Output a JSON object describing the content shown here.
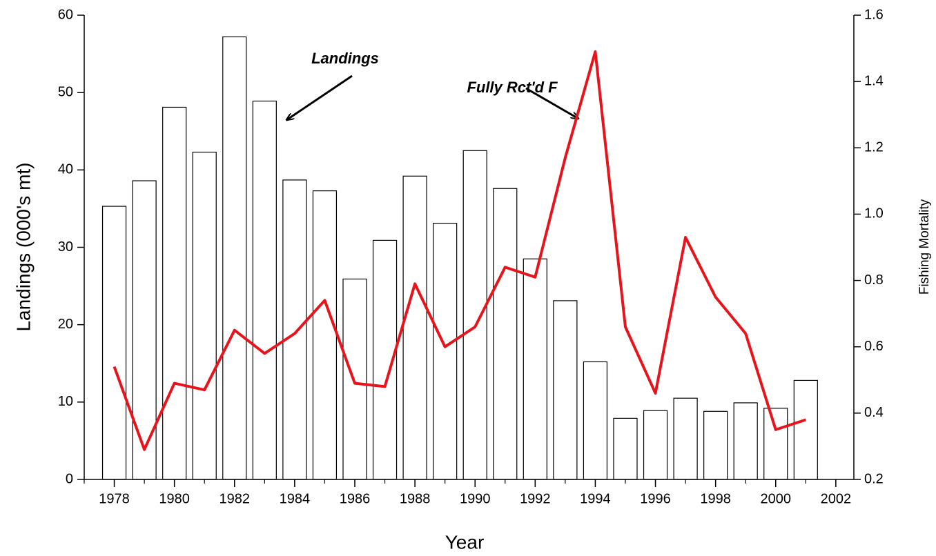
{
  "chart_data": {
    "type": "bar_line",
    "x": [
      1978,
      1979,
      1980,
      1981,
      1982,
      1983,
      1984,
      1985,
      1986,
      1987,
      1988,
      1989,
      1990,
      1991,
      1992,
      1993,
      1994,
      1995,
      1996,
      1997,
      1998,
      1999,
      2000,
      2001
    ],
    "series": [
      {
        "name": "Landings",
        "type": "bar",
        "color": "#ffffff",
        "values": [
          35.3,
          38.6,
          48.1,
          42.3,
          57.2,
          48.9,
          38.7,
          37.3,
          25.9,
          30.9,
          39.2,
          33.1,
          42.5,
          37.6,
          28.5,
          23.1,
          15.2,
          7.9,
          8.9,
          10.5,
          8.8,
          9.9,
          9.2,
          12.8
        ]
      },
      {
        "name": "Fully Rct'd F",
        "type": "line",
        "axis": "y2",
        "color": "#e8141b",
        "values": [
          0.54,
          0.29,
          0.49,
          0.47,
          0.65,
          0.58,
          0.64,
          0.74,
          0.49,
          0.48,
          0.79,
          0.6,
          0.66,
          0.84,
          0.81,
          1.17,
          1.49,
          0.66,
          0.46,
          0.93,
          0.75,
          0.64,
          0.35,
          0.38
        ]
      }
    ],
    "xlabel": "Year",
    "ylabel": "Landings (000's mt)",
    "y2label": "Fishing Mortality",
    "xlim": [
      1977,
      2002.6
    ],
    "xticks": [
      1978,
      1980,
      1982,
      1984,
      1986,
      1988,
      1990,
      1992,
      1994,
      1996,
      1998,
      2000,
      2002
    ],
    "ylim": [
      0,
      60
    ],
    "yticks": [
      0,
      10,
      20,
      30,
      40,
      50,
      60
    ],
    "y2lim": [
      0.2,
      1.6
    ],
    "y2ticks": [
      0.2,
      0.4,
      0.6,
      0.8,
      {
        "value": 1,
        "label": "1.0"
      },
      1.2,
      1.4,
      1.6
    ]
  }
}
